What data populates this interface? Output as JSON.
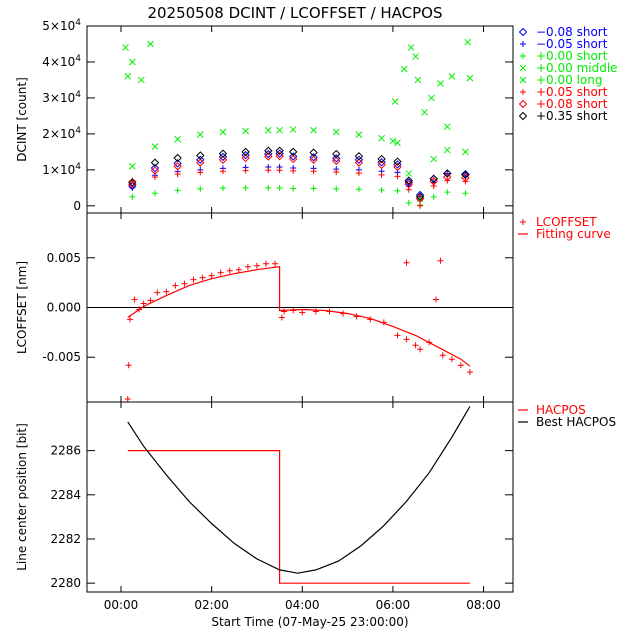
{
  "figure": {
    "title": "20250508 DCINT / LCOFFSET / HACPOS",
    "x_axis_label": "Start Time (07-May-25 23:00:00)",
    "x_ticks": [
      "00:00",
      "02:00",
      "04:00",
      "06:00",
      "08:00"
    ]
  },
  "chart_data": [
    {
      "type": "scatter",
      "panel": "DCINT",
      "ylabel": "DCINT [count]",
      "xlim": [
        -0.75,
        8.65
      ],
      "ylim": [
        -2000,
        50000
      ],
      "yticks": [
        {
          "value": 0,
          "label": "0"
        },
        {
          "value": 10000,
          "label": "1×10",
          "sup": "4"
        },
        {
          "value": 20000,
          "label": "2×10",
          "sup": "4"
        },
        {
          "value": 30000,
          "label": "3×10",
          "sup": "4"
        },
        {
          "value": 40000,
          "label": "4×10",
          "sup": "4"
        },
        {
          "value": 50000,
          "label": "5×10",
          "sup": "4"
        }
      ],
      "legend_position": "right-outside",
      "series": [
        {
          "name": "−0.08 short",
          "marker": "diamond",
          "color": "#0000ff",
          "x": [
            0.25,
            0.75,
            1.25,
            1.75,
            2.25,
            2.75,
            3.25,
            3.5,
            3.8,
            4.25,
            4.75,
            5.25,
            5.75,
            6.1,
            6.35,
            6.6,
            6.9,
            7.2,
            7.6
          ],
          "y": [
            5500,
            10500,
            11800,
            12800,
            13600,
            14100,
            14400,
            14500,
            13700,
            13500,
            13200,
            12800,
            12100,
            11500,
            6500,
            3000,
            7500,
            9000,
            8800
          ]
        },
        {
          "name": "−0.05 short",
          "marker": "plus",
          "color": "#0000ff",
          "x": [
            0.25,
            0.75,
            1.25,
            1.75,
            2.25,
            2.75,
            3.25,
            3.5,
            3.8,
            4.25,
            4.75,
            5.25,
            5.75,
            6.1,
            6.35,
            6.6,
            6.9,
            7.2,
            7.6
          ],
          "y": [
            5000,
            8500,
            9500,
            10000,
            10400,
            10700,
            10800,
            10800,
            10500,
            10400,
            10200,
            10000,
            9600,
            9300,
            5500,
            2500,
            6500,
            9000,
            8800
          ]
        },
        {
          "name": "+0.00 short",
          "marker": "plus",
          "color": "#00ee00",
          "x": [
            0.25,
            0.75,
            1.25,
            1.75,
            2.25,
            2.75,
            3.25,
            3.5,
            3.8,
            4.25,
            4.75,
            5.25,
            5.75,
            6.1,
            6.35,
            6.6,
            6.9,
            7.2,
            7.6
          ],
          "y": [
            2500,
            3500,
            4300,
            4700,
            4900,
            5000,
            5000,
            5000,
            4800,
            4800,
            4700,
            4600,
            4400,
            4200,
            800,
            200,
            2500,
            3800,
            3500
          ]
        },
        {
          "name": "+0.00 middle",
          "marker": "x",
          "color": "#00ee00",
          "x": [
            0.1,
            0.15,
            0.25,
            0.45,
            0.65,
            6.0,
            6.05,
            6.25,
            6.4,
            6.5,
            6.55,
            6.7,
            6.85,
            7.05,
            7.2,
            7.3,
            7.65,
            7.7
          ],
          "y": [
            44000,
            36000,
            40000,
            35000,
            45000,
            18000,
            29000,
            38000,
            44000,
            41500,
            35000,
            26000,
            30000,
            34000,
            22000,
            36000,
            45500,
            35500
          ]
        },
        {
          "name": "+0.00 long",
          "marker": "x",
          "color": "#00ee00",
          "x": [
            0.25,
            0.75,
            1.25,
            1.75,
            2.25,
            2.75,
            3.25,
            3.5,
            3.8,
            4.25,
            4.75,
            5.25,
            5.75,
            6.1,
            6.35,
            6.6,
            6.9,
            7.2,
            7.6
          ],
          "y": [
            11000,
            16500,
            18500,
            19800,
            20500,
            20800,
            21000,
            21000,
            21200,
            21000,
            20500,
            19800,
            18800,
            17500,
            9000,
            2000,
            13000,
            15500,
            15000
          ]
        },
        {
          "name": "+0.05 short",
          "marker": "plus",
          "color": "#ff0000",
          "x": [
            0.25,
            0.75,
            1.25,
            1.75,
            2.25,
            2.75,
            3.25,
            3.5,
            3.8,
            4.25,
            4.75,
            5.25,
            5.75,
            6.1,
            6.35,
            6.6,
            6.9,
            7.2,
            7.6
          ],
          "y": [
            7000,
            8000,
            8800,
            9300,
            9600,
            9800,
            9900,
            9900,
            9700,
            9600,
            9400,
            9100,
            8600,
            8200,
            4500,
            0,
            5500,
            7000,
            6800
          ]
        },
        {
          "name": "+0.08 short",
          "marker": "diamond",
          "color": "#ff0000",
          "x": [
            0.25,
            0.75,
            1.25,
            1.75,
            2.25,
            2.75,
            3.25,
            3.5,
            3.8,
            4.25,
            4.75,
            5.25,
            5.75,
            6.1,
            6.35,
            6.6,
            6.9,
            7.2,
            7.6
          ],
          "y": [
            6000,
            9800,
            11000,
            12000,
            12800,
            13300,
            13700,
            13800,
            13000,
            12800,
            12500,
            12000,
            11400,
            10800,
            6000,
            2000,
            6800,
            8000,
            7800
          ]
        },
        {
          "name": "+0.35 short",
          "marker": "diamond",
          "color": "#000000",
          "x": [
            0.25,
            0.75,
            1.25,
            1.75,
            2.25,
            2.75,
            3.25,
            3.5,
            3.8,
            4.25,
            4.75,
            5.25,
            5.75,
            6.1,
            6.35,
            6.6,
            6.9,
            7.2,
            7.6
          ],
          "y": [
            6500,
            12000,
            13300,
            14000,
            14500,
            15000,
            15300,
            15300,
            15000,
            14800,
            14400,
            13800,
            13000,
            12300,
            7000,
            2500,
            7500,
            9000,
            8600
          ]
        }
      ]
    },
    {
      "type": "scatter",
      "panel": "LCOFFSET",
      "ylabel": "LCOFFSET [nm]",
      "xlim": [
        -0.75,
        8.65
      ],
      "ylim": [
        -0.0095,
        0.0095
      ],
      "yticks": [
        {
          "value": -0.005,
          "label": "-0.005"
        },
        {
          "value": 0.0,
          "label": "0.000"
        },
        {
          "value": 0.005,
          "label": "0.005"
        }
      ],
      "zero_line": true,
      "legend_position": "right-outside",
      "series": [
        {
          "name": "LCOFFSET",
          "marker": "plus",
          "color": "#ff0000",
          "x": [
            0.15,
            0.17,
            0.2,
            0.3,
            0.4,
            0.5,
            0.65,
            0.8,
            1.0,
            1.2,
            1.4,
            1.6,
            1.8,
            2.0,
            2.2,
            2.4,
            2.6,
            2.8,
            3.0,
            3.2,
            3.4,
            3.55,
            3.6,
            3.8,
            4.0,
            4.3,
            4.6,
            4.9,
            5.2,
            5.5,
            5.8,
            6.1,
            6.3,
            6.5,
            6.6,
            6.8,
            6.95,
            7.1,
            7.3,
            7.5,
            7.7,
            6.3,
            7.05
          ],
          "y": [
            -0.0092,
            -0.0058,
            -0.0012,
            0.0008,
            -0.0002,
            0.0004,
            0.0007,
            0.0015,
            0.0016,
            0.0022,
            0.0024,
            0.0028,
            0.003,
            0.0032,
            0.0035,
            0.0037,
            0.0038,
            0.0041,
            0.0042,
            0.0044,
            0.0044,
            -0.001,
            -0.0004,
            -0.0003,
            -0.0005,
            -0.0004,
            -0.0004,
            -0.0006,
            -0.0009,
            -0.0012,
            -0.0015,
            -0.0028,
            -0.0032,
            -0.0038,
            -0.0042,
            -0.0035,
            0.0008,
            -0.0048,
            -0.0052,
            -0.0058,
            -0.0065,
            0.0045,
            0.0047
          ]
        },
        {
          "name": "Fitting curve",
          "marker": "line",
          "color": "#ff0000",
          "x": [
            0.15,
            0.5,
            1.0,
            1.5,
            2.0,
            2.5,
            3.0,
            3.5,
            3.5,
            4.0,
            4.5,
            5.0,
            5.5,
            6.0,
            6.5,
            7.0,
            7.5,
            7.7
          ],
          "y": [
            -0.001,
            0.0001,
            0.0012,
            0.0022,
            0.0029,
            0.0034,
            0.0038,
            0.0041,
            -0.0003,
            -0.0002,
            -0.0003,
            -0.0006,
            -0.0011,
            -0.0019,
            -0.0028,
            -0.004,
            -0.0052,
            -0.0059
          ]
        }
      ]
    },
    {
      "type": "line",
      "panel": "HACPOS",
      "ylabel": "Line center position [bit]",
      "xlim": [
        -0.75,
        8.65
      ],
      "ylim": [
        2279.6,
        2288.2
      ],
      "yticks": [
        {
          "value": 2280,
          "label": "2280"
        },
        {
          "value": 2282,
          "label": "2282"
        },
        {
          "value": 2284,
          "label": "2284"
        },
        {
          "value": 2286,
          "label": "2286"
        }
      ],
      "legend_position": "right-outside",
      "series": [
        {
          "name": "HACPOS",
          "color": "#ff0000",
          "x": [
            0.15,
            3.5,
            3.5,
            7.7
          ],
          "y": [
            2286,
            2286,
            2280,
            2280
          ]
        },
        {
          "name": "Best HACPOS",
          "color": "#000000",
          "x": [
            0.15,
            0.5,
            1.0,
            1.5,
            2.0,
            2.5,
            3.0,
            3.5,
            3.9,
            4.3,
            4.8,
            5.3,
            5.8,
            6.3,
            6.8,
            7.3,
            7.7
          ],
          "y": [
            2287.3,
            2286.2,
            2284.9,
            2283.7,
            2282.7,
            2281.8,
            2281.1,
            2280.6,
            2280.45,
            2280.6,
            2281.0,
            2281.7,
            2282.6,
            2283.7,
            2285.0,
            2286.6,
            2288.0
          ]
        }
      ]
    }
  ]
}
